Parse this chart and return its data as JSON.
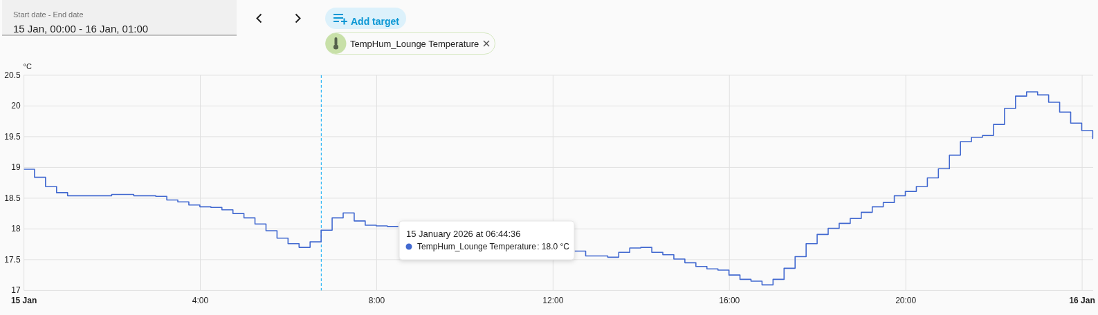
{
  "chart_data": {
    "type": "step",
    "ylabel": "°C",
    "x": [
      0,
      0.24,
      0.49,
      0.74,
      0.99,
      1.99,
      2.49,
      2.99,
      3.24,
      3.49,
      3.74,
      3.99,
      4.24,
      4.49,
      4.74,
      4.99,
      5.24,
      5.49,
      5.74,
      5.99,
      6.24,
      6.49,
      6.74,
      6.99,
      7.24,
      7.49,
      7.74,
      7.99,
      8.24,
      8.49,
      12.49,
      12.74,
      13.24,
      13.49,
      13.74,
      13.99,
      14.24,
      14.49,
      14.74,
      14.99,
      15.24,
      15.49,
      15.74,
      15.99,
      16.24,
      16.49,
      16.74,
      16.99,
      17.24,
      17.49,
      17.74,
      17.99,
      18.24,
      18.49,
      18.74,
      18.99,
      19.24,
      19.49,
      19.74,
      19.99,
      20.24,
      20.49,
      20.74,
      20.99,
      21.24,
      21.49,
      21.74,
      21.99,
      22.24,
      22.49,
      22.74,
      22.99,
      23.24,
      23.49,
      23.74,
      23.99,
      24.24
    ],
    "series": [
      {
        "name": "TempHum_Lounge Temperature",
        "color": "#4269d0",
        "values": [
          18.97,
          18.84,
          18.69,
          18.59,
          18.54,
          18.56,
          18.54,
          18.53,
          18.47,
          18.44,
          18.39,
          18.36,
          18.35,
          18.31,
          18.25,
          18.18,
          18.08,
          17.97,
          17.85,
          17.76,
          17.7,
          17.79,
          17.98,
          18.18,
          18.26,
          18.13,
          18.06,
          18.05,
          18.04,
          null,
          17.64,
          17.56,
          17.54,
          17.62,
          17.69,
          17.7,
          17.62,
          17.58,
          17.51,
          17.45,
          17.39,
          17.35,
          17.33,
          17.25,
          17.18,
          17.15,
          17.09,
          17.18,
          17.36,
          17.55,
          17.76,
          17.91,
          18.01,
          18.09,
          18.17,
          18.27,
          18.36,
          18.43,
          18.54,
          18.61,
          18.69,
          18.83,
          18.98,
          19.2,
          19.42,
          19.49,
          19.52,
          19.7,
          19.96,
          20.16,
          20.23,
          20.18,
          20.06,
          19.9,
          19.72,
          19.6,
          19.47
        ]
      }
    ],
    "xlim": [
      0,
      24.25
    ],
    "xticks": [
      {
        "value": 0,
        "label": "15 Jan"
      },
      {
        "value": 4,
        "label": "4:00"
      },
      {
        "value": 8,
        "label": "8:00"
      },
      {
        "value": 12,
        "label": "12:00"
      },
      {
        "value": 16,
        "label": "16:00"
      },
      {
        "value": 20,
        "label": "20:00"
      },
      {
        "value": 24,
        "label": "16 Jan"
      }
    ],
    "ylim": [
      17,
      20.5
    ],
    "yticks": [
      17,
      17.5,
      18,
      18.5,
      19,
      19.5,
      20,
      20.5
    ],
    "grid": true,
    "ref_lines": [
      {
        "axis": "x",
        "value": 6.743,
        "color": "#03a9f4",
        "line_style": "dashed"
      }
    ],
    "annotations": [
      "Start date - End date",
      "15 Jan, 00:00 - 16 Jan, 01:00",
      "Add target",
      "15 January 2026 at 06:44:36",
      ": 18.0 °C"
    ]
  }
}
